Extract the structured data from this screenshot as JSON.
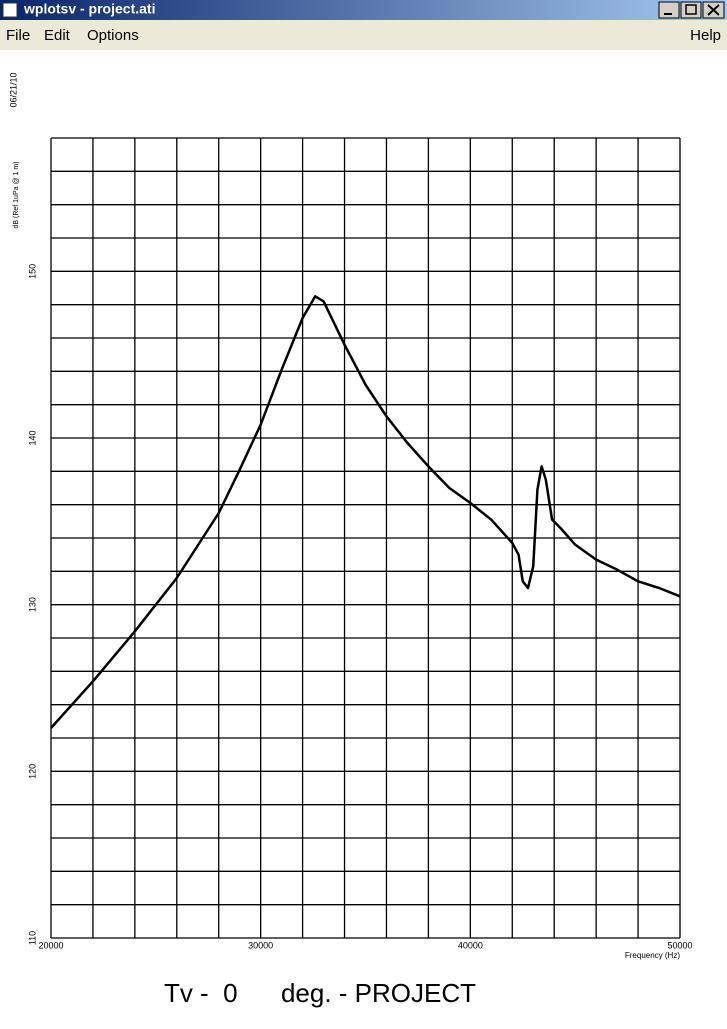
{
  "window": {
    "title": "wplotsv - project.ati",
    "menu": [
      "File",
      "Edit",
      "Options"
    ],
    "help": "Help"
  },
  "chart_data": {
    "type": "line",
    "date": "06/21/10",
    "ylabel": "dB (Ref 1uPa @ 1 m)",
    "xlabel": "Frequency (Hz)",
    "caption": "Tv -  0      deg. - PROJECT",
    "xlim": [
      20000,
      50000
    ],
    "xticks": [
      20000,
      30000,
      40000,
      50000
    ],
    "xgrid": [
      20000,
      22000,
      24000,
      26000,
      28000,
      30000,
      32000,
      34000,
      36000,
      38000,
      40000,
      42000,
      44000,
      46000,
      48000,
      50000
    ],
    "ylim": [
      110,
      158
    ],
    "yticks": [
      110,
      120,
      130,
      140,
      150
    ],
    "ygrid": [
      110,
      112,
      114,
      116,
      118,
      120,
      122,
      124,
      126,
      128,
      130,
      132,
      134,
      136,
      138,
      140,
      142,
      144,
      146,
      148,
      150,
      152,
      154,
      156,
      158
    ],
    "grid": true,
    "series": [
      {
        "color": "#000000",
        "x": [
          20000,
          22000,
          24000,
          26000,
          28000,
          29000,
          30000,
          31000,
          32000,
          32600,
          33000,
          34000,
          35000,
          36000,
          37000,
          38000,
          39000,
          40000,
          41000,
          42000,
          42300,
          42500,
          42750,
          43000,
          43200,
          43400,
          43600,
          43900,
          44300,
          45000,
          46000,
          47000,
          48000,
          49000,
          50000
        ],
        "values": [
          122.6,
          125.4,
          128.4,
          131.6,
          135.5,
          138.1,
          140.8,
          144.1,
          147.2,
          148.5,
          148.2,
          145.6,
          143.2,
          141.3,
          139.7,
          138.3,
          137.0,
          136.1,
          135.1,
          133.7,
          133.0,
          131.4,
          131.0,
          132.3,
          136.9,
          138.3,
          137.5,
          135.1,
          134.6,
          133.6,
          132.7,
          132.1,
          131.4,
          131.0,
          130.5
        ]
      }
    ]
  }
}
